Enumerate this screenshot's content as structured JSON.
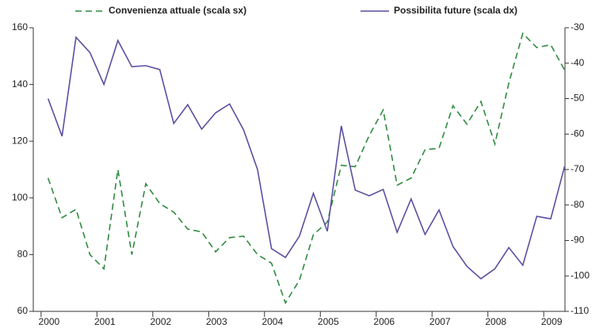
{
  "chart_data": {
    "type": "line",
    "x": [
      2000.125,
      2000.375,
      2000.625,
      2000.875,
      2001.125,
      2001.375,
      2001.625,
      2001.875,
      2002.125,
      2002.375,
      2002.625,
      2002.875,
      2003.125,
      2003.375,
      2003.625,
      2003.875,
      2004.125,
      2004.375,
      2004.625,
      2004.875,
      2005.125,
      2005.375,
      2005.625,
      2005.875,
      2006.125,
      2006.375,
      2006.625,
      2006.875,
      2007.125,
      2007.375,
      2007.625,
      2007.875,
      2008.125,
      2008.375,
      2008.625,
      2008.875,
      2009.125,
      2009.375
    ],
    "series": [
      {
        "name": "Convenienza attuale (scala sx)",
        "color": "#2e8b3e",
        "dashed": true,
        "axis": "y",
        "values": [
          107,
          93,
          96,
          80,
          75,
          110,
          80,
          105,
          98,
          95,
          89,
          88,
          81,
          86,
          86.5,
          80,
          77,
          63,
          71,
          87,
          91.5,
          111.5,
          111,
          122,
          131,
          104.5,
          107,
          117,
          117.5,
          132.5,
          126,
          134,
          119,
          140.5,
          158,
          153,
          154,
          145
        ]
      },
      {
        "name": "Possibilita future (scala dx)",
        "color": "#5a4fa0",
        "dashed": false,
        "axis": "y2",
        "values": [
          -50,
          -60.6,
          -32.7,
          -37,
          -46,
          -33.6,
          -41,
          -40.7,
          -41.8,
          -57,
          -51.7,
          -58.6,
          -54,
          -51.5,
          -58.8,
          -70,
          -92.3,
          -94.8,
          -88.8,
          -76.7,
          -87.4,
          -57.7,
          -75.8,
          -77.4,
          -75.6,
          -87.7,
          -78.3,
          -88.3,
          -81.4,
          -91.7,
          -97.3,
          -100.8,
          -98,
          -92,
          -97,
          -83.2,
          -83.9,
          -69
        ]
      }
    ],
    "xlim": [
      1999.86,
      2009.38
    ],
    "xticks": [
      2000,
      2001,
      2002,
      2003,
      2004,
      2005,
      2006,
      2007,
      2008,
      2009
    ],
    "ylim": [
      60,
      160
    ],
    "yticks": [
      60,
      80,
      100,
      120,
      140,
      160
    ],
    "y2lim": [
      -110,
      -30
    ],
    "y2ticks": [
      -110,
      -100,
      -90,
      -80,
      -70,
      -60,
      -50,
      -40,
      -30
    ],
    "grid": false
  }
}
